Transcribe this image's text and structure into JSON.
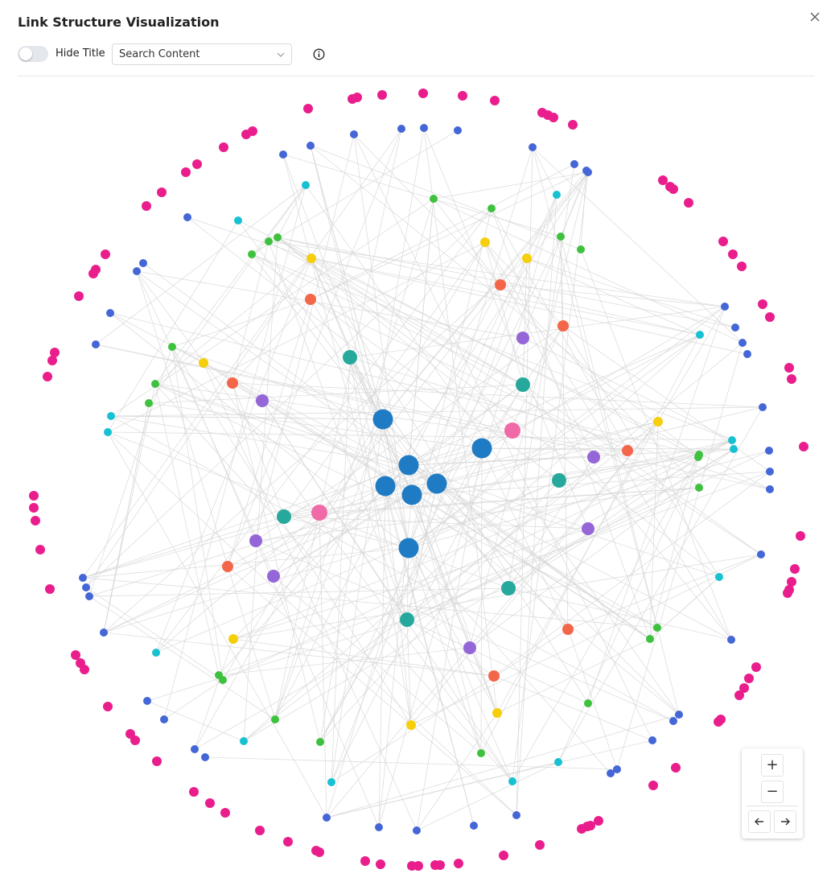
{
  "header": {
    "title": "Link Structure Visualization",
    "toggle_label": "Hide Title",
    "search_placeholder": "Search Content"
  },
  "zoom_controls": {
    "zoom_in": "+",
    "zoom_out": "−"
  }
}
